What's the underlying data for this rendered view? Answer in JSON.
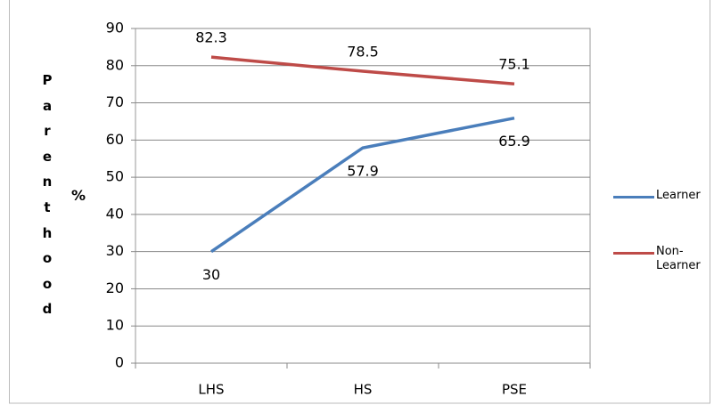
{
  "chart_data": {
    "type": "line",
    "y_label": "Parenthood",
    "y_unit": "%",
    "categories": [
      "LHS",
      "HS",
      "PSE"
    ],
    "series": [
      {
        "name": "Learner",
        "color": "#4a7ebb",
        "values": [
          30,
          57.9,
          65.9
        ]
      },
      {
        "name": "Non-Learner",
        "color": "#be4b48",
        "values": [
          82.3,
          78.5,
          75.1
        ]
      }
    ],
    "ylim": [
      0,
      90
    ],
    "yticks": [
      0,
      10,
      20,
      30,
      40,
      50,
      60,
      70,
      80,
      90
    ],
    "grid": true,
    "legend": "right"
  }
}
